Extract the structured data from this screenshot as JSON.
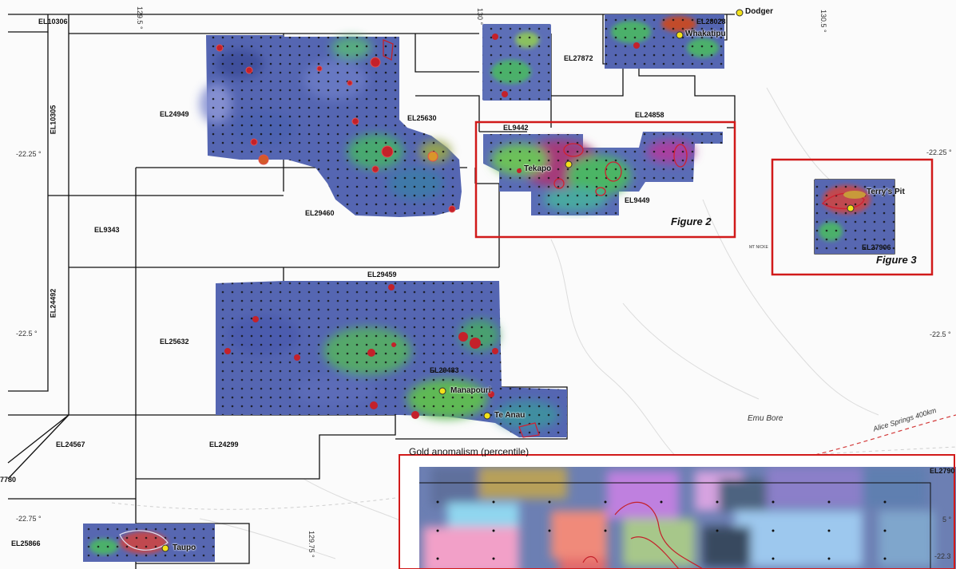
{
  "licence_labels": {
    "el10306": "EL10306",
    "el10305": "EL10305",
    "el24949": "EL24949",
    "el25630": "EL25630",
    "el29460": "EL29460",
    "el9343": "EL9343",
    "el24492": "EL24492",
    "el29459": "EL29459",
    "el25632": "EL25632",
    "el29483": "EL29483",
    "el24567": "EL24567",
    "el24299": "EL24299",
    "el25866": "EL25866",
    "el9442": "EL9442",
    "el9449": "EL9449",
    "el24858": "EL24858",
    "el27872": "EL27872",
    "el28028": "EL28028",
    "el27906": "EL27906",
    "el2790": "EL2790",
    "cut_7780": "7780"
  },
  "places": {
    "dodger": "Dodger",
    "whakatipu": "Whakatipu",
    "tekapo": "Tekapo",
    "terrys_pit": "Terry's Pit",
    "manapouri": "Manapouri",
    "te_anau": "Te Anau",
    "taupo": "Taupo",
    "emu_bore": "Emu Bore",
    "mt_nicker": "MT NICKE"
  },
  "coords": {
    "lon_129_5": "129.5 °",
    "lon_130": "130 °",
    "lon_130_5": "130.5 °",
    "lon_129_75": "129.75 °",
    "lat_22_25_left": "-22.25 °",
    "lat_22_25_right": "-22.25 °",
    "lat_22_5_left": "-22.5 °",
    "lat_22_5_right": "-22.5 °",
    "lat_22_75_left": "-22.75 °",
    "lat_right_partial": "-22.3",
    "lat_right_5": "5 °"
  },
  "figures": {
    "figure2": "Figure 2",
    "figure3": "Figure 3"
  },
  "road_label": "Alice Springs 400km",
  "inset_title": "Gold anomalism (percentile)",
  "colors": {
    "licence_outline": "#111111",
    "figure_box": "#d11a1a",
    "anomaly_low": "#4a5aa8",
    "anomaly_mid": "#4fbf6a",
    "anomaly_high": "#c4212a",
    "prospect_marker": "#f3e21a",
    "road": "#d33a3a"
  }
}
